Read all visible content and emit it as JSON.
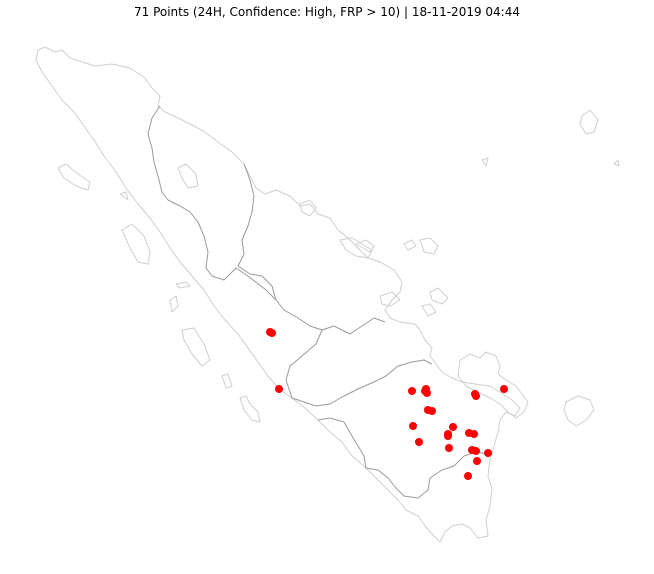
{
  "title": "71 Points (24H, Confidence: High, FRP > 10) | 18-11-2019 04:44",
  "colors": {
    "background": "#ffffff",
    "coastline": "#cfcfcf",
    "province_border": "#9a9a9a",
    "hotspot": "#ff0000"
  },
  "hotspots": {
    "count": 71,
    "confidence": "High",
    "frp_threshold": 10,
    "window": "24H",
    "timestamp": "18-11-2019 04:44"
  }
}
